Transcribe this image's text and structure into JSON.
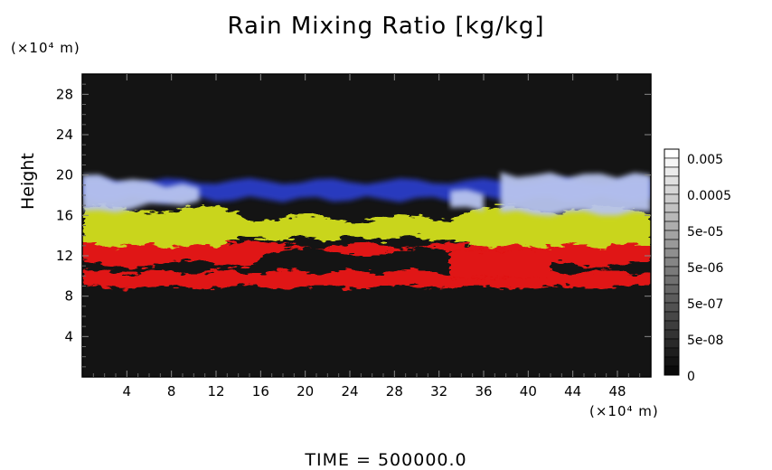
{
  "chart_data": {
    "type": "heatmap",
    "title": "Rain Mixing Ratio [kg/kg]",
    "ylabel": "Height",
    "xlabel": "",
    "x_unit": "(×10⁴ m)",
    "y_unit": "(×10⁴ m)",
    "xlim": [
      0,
      51
    ],
    "ylim": [
      0,
      30
    ],
    "x_ticks": [
      "4",
      "8",
      "12",
      "16",
      "20",
      "24",
      "28",
      "32",
      "36",
      "40",
      "44",
      "48"
    ],
    "y_ticks": [
      "4",
      "8",
      "12",
      "16",
      "20",
      "24",
      "28"
    ],
    "colorbar_labels": [
      "0.005",
      "0.0005",
      "5e-05",
      "5e-06",
      "5e-07",
      "5e-08",
      "0"
    ],
    "colorbar_scale": "log",
    "background_color": "#141414",
    "layers": [
      {
        "color": "#b8c4ef",
        "y_range": [
          16,
          20
        ],
        "description_color": "light blue"
      },
      {
        "color": "#2a3ec8",
        "y_range": [
          17.5,
          20
        ],
        "description_color": "blue"
      },
      {
        "color": "#c9d51e",
        "y_range": [
          13,
          17
        ],
        "description_color": "yellow"
      },
      {
        "color": "#e01616",
        "y_range": [
          9,
          14
        ],
        "description_color": "red"
      }
    ],
    "footer": "TIME  =  500000.0"
  }
}
